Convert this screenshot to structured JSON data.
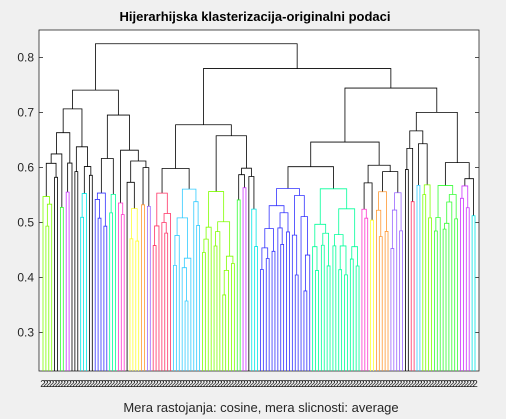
{
  "chart_data": {
    "type": "dendrogram",
    "title": "Hijerarhijska klasterizacija-originalni podaci",
    "xlabel": "Mera rastojanja: cosine, mera slicnosti: average",
    "ylabel": "",
    "ylim": [
      0.23,
      0.85
    ],
    "yticks": [
      0.3,
      0.4,
      0.5,
      0.6,
      0.7,
      0.8
    ],
    "ytick_labels": [
      "0.3",
      "0.4",
      "0.5",
      "0.6",
      "0.7",
      "0.8"
    ],
    "leaf_count": 150,
    "leaf_labels_overlapping": "2",
    "color_threshold": 0.57,
    "grid": false,
    "colors": {
      "above_threshold": "#000000",
      "cluster_palette": [
        "#80ff00",
        "#33ff33",
        "#cc33ff",
        "#00e6e6",
        "#3333ff",
        "#00ff99",
        "#ff33cc",
        "#ffff33",
        "#ff9933",
        "#9966ff",
        "#ff3366",
        "#33ccff"
      ]
    }
  }
}
